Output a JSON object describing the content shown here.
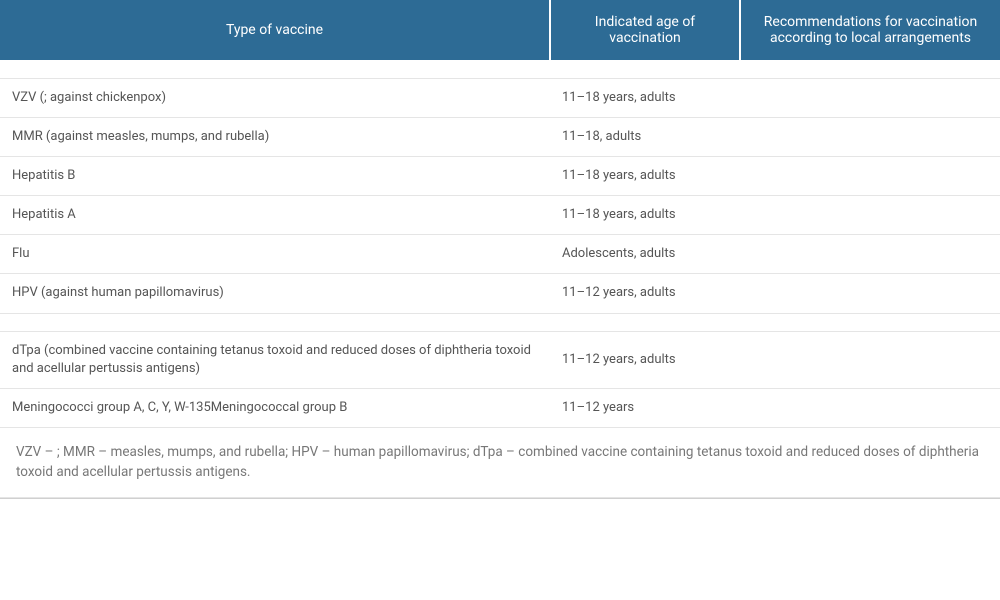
{
  "table": {
    "header_bg": "#2d6b95",
    "header_fg": "#ffffff",
    "row_border": "#e5e5e5",
    "text_color": "#555555",
    "footnote_color": "#777777",
    "columns": [
      {
        "key": "type",
        "label": "Type of vaccine"
      },
      {
        "key": "age",
        "label": "Indicated age of vaccination"
      },
      {
        "key": "rec",
        "label": "Recommendations for vaccination according to local arrangements"
      }
    ],
    "groups": [
      {
        "rows": [
          {
            "type": "VZV (; against chickenpox)",
            "age": "11–18 years, adults",
            "rec": ""
          },
          {
            "type": "MMR (against measles, mumps, and rubella)",
            "age": "11–18, adults",
            "rec": ""
          },
          {
            "type": "Hepatitis B",
            "age": "11–18 years, adults",
            "rec": ""
          },
          {
            "type": "Hepatitis A",
            "age": "11–18 years, adults",
            "rec": ""
          },
          {
            "type": "Flu",
            "age": "Adolescents, adults",
            "rec": ""
          },
          {
            "type": "HPV (against human papillomavirus)",
            "age": "11–12 years, adults",
            "rec": ""
          }
        ]
      },
      {
        "rows": [
          {
            "type": "dTpa (combined vaccine containing tetanus toxoid and reduced doses of diphtheria toxoid and acellular pertussis antigens)",
            "age": "11–12 years, adults",
            "rec": ""
          },
          {
            "type": "Meningococci group A, C, Y, W-135Meningococcal group B",
            "age": "11–12 years",
            "rec": ""
          }
        ]
      }
    ],
    "footnote": "VZV – ; MMR – measles, mumps, and rubella; HPV – human papillomavirus; dTpa – combined vaccine containing tetanus toxoid and reduced doses of diphtheria toxoid and acellular pertussis antigens."
  }
}
